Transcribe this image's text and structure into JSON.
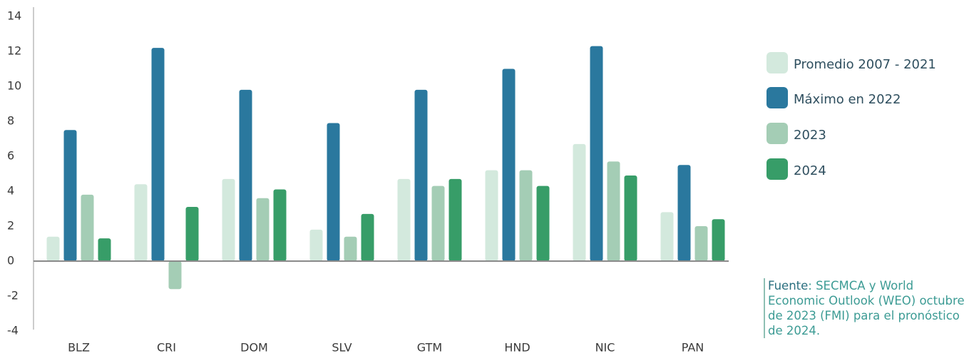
{
  "chart_data": {
    "type": "bar",
    "categories": [
      "BLZ",
      "CRI",
      "DOM",
      "SLV",
      "GTM",
      "HND",
      "NIC",
      "PAN"
    ],
    "series": [
      {
        "name": "Promedio 2007 - 2021",
        "color": "#d3e9dd",
        "values": [
          1.4,
          4.4,
          4.7,
          1.8,
          4.7,
          5.2,
          6.7,
          2.8
        ]
      },
      {
        "name": "Máximo en 2022",
        "color": "#2a789e",
        "values": [
          7.5,
          12.2,
          9.8,
          7.9,
          9.8,
          11.0,
          12.3,
          5.5
        ]
      },
      {
        "name": "2023",
        "color": "#a4cdb5",
        "values": [
          3.8,
          -1.6,
          3.6,
          1.4,
          4.3,
          5.2,
          5.7,
          2.0
        ]
      },
      {
        "name": "2024",
        "color": "#379d68",
        "values": [
          1.3,
          3.1,
          4.1,
          2.7,
          4.7,
          4.3,
          4.9,
          2.4
        ]
      }
    ],
    "ylim": [
      -4,
      14
    ],
    "yticks": [
      -4,
      -2,
      0,
      2,
      4,
      6,
      8,
      10,
      12,
      14
    ],
    "source_label": "Fuente",
    "source_text": ": SECMCA y World Economic Outlook (WEO) octubre de 2023 (FMI) para el pronóstico de 2024."
  }
}
